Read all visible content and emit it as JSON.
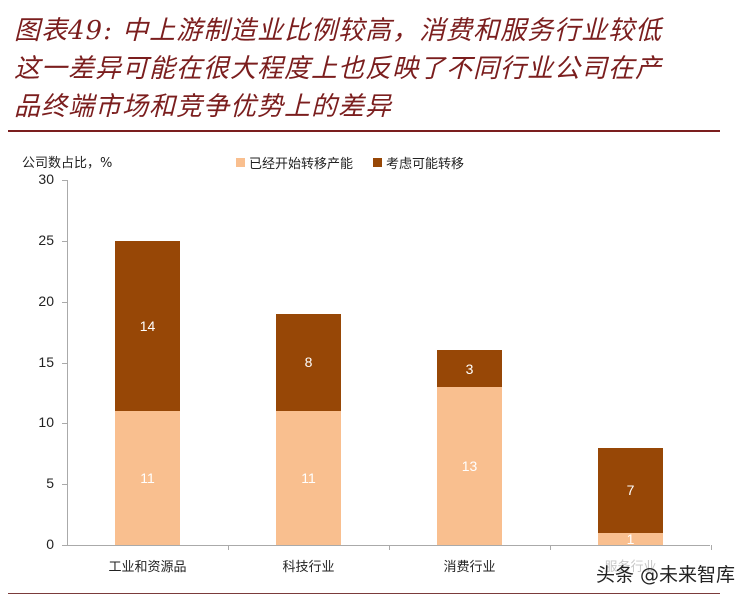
{
  "title": "图表49：中上游制造业比例较高，消费和服务行业较低这一差异可能在很大程度上也反映了不同行业公司在产品终端市场和竞争优势上的差异",
  "title_lines": [
    "图表49:  中上游制造业比例较高，消费和服务行业较低",
    "这一差异可能在很大程度上也反映了不同行业公司在产",
    "品终端市场和竞争优势上的差异"
  ],
  "watermark": "头条 @未来智库",
  "colors": {
    "title": "#7b1e1e",
    "series_started": "#f9bf8f",
    "series_considering": "#974706"
  },
  "chart_data": {
    "type": "bar",
    "stacked": true,
    "title": "中上游制造业比例较高，消费和服务行业较低",
    "xlabel": "",
    "ylabel": "公司数占比，%",
    "ylim": [
      0,
      30
    ],
    "yticks": [
      0,
      5,
      10,
      15,
      20,
      25,
      30
    ],
    "grid": false,
    "legend_position": "top",
    "categories": [
      "工业和资源品",
      "科技行业",
      "消费行业",
      "服务行业"
    ],
    "series": [
      {
        "name": "已经开始转移产能",
        "color": "#f9bf8f",
        "values": [
          11,
          11,
          13,
          1
        ]
      },
      {
        "name": "考虑可能转移",
        "color": "#974706",
        "values": [
          14,
          8,
          3,
          7
        ]
      }
    ],
    "totals": [
      25,
      19,
      16,
      8
    ]
  }
}
